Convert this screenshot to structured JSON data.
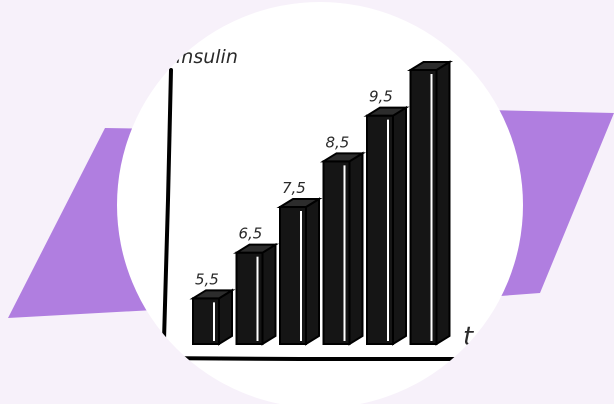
{
  "colors": {
    "background": "#f7f1fa",
    "ribbon": "#b07ee0",
    "disc": "#ffffff",
    "bar_front": "#151515",
    "bar_top": "#2c2c2c",
    "outline": "#000000"
  },
  "chart_data": {
    "type": "bar",
    "style": "3d hand-drawn",
    "ylabel": "insulin",
    "xlabel": "t",
    "categories": [
      "",
      "",
      "",
      "",
      "",
      ""
    ],
    "values": [
      5.5,
      6.5,
      7.5,
      8.5,
      9.5,
      10.5
    ],
    "data_labels": [
      "5,5",
      "6,5",
      "7,5",
      "8,5",
      "9,5",
      ""
    ],
    "ylim": [
      4.5,
      10.5
    ],
    "grid": false,
    "legend": "none"
  }
}
